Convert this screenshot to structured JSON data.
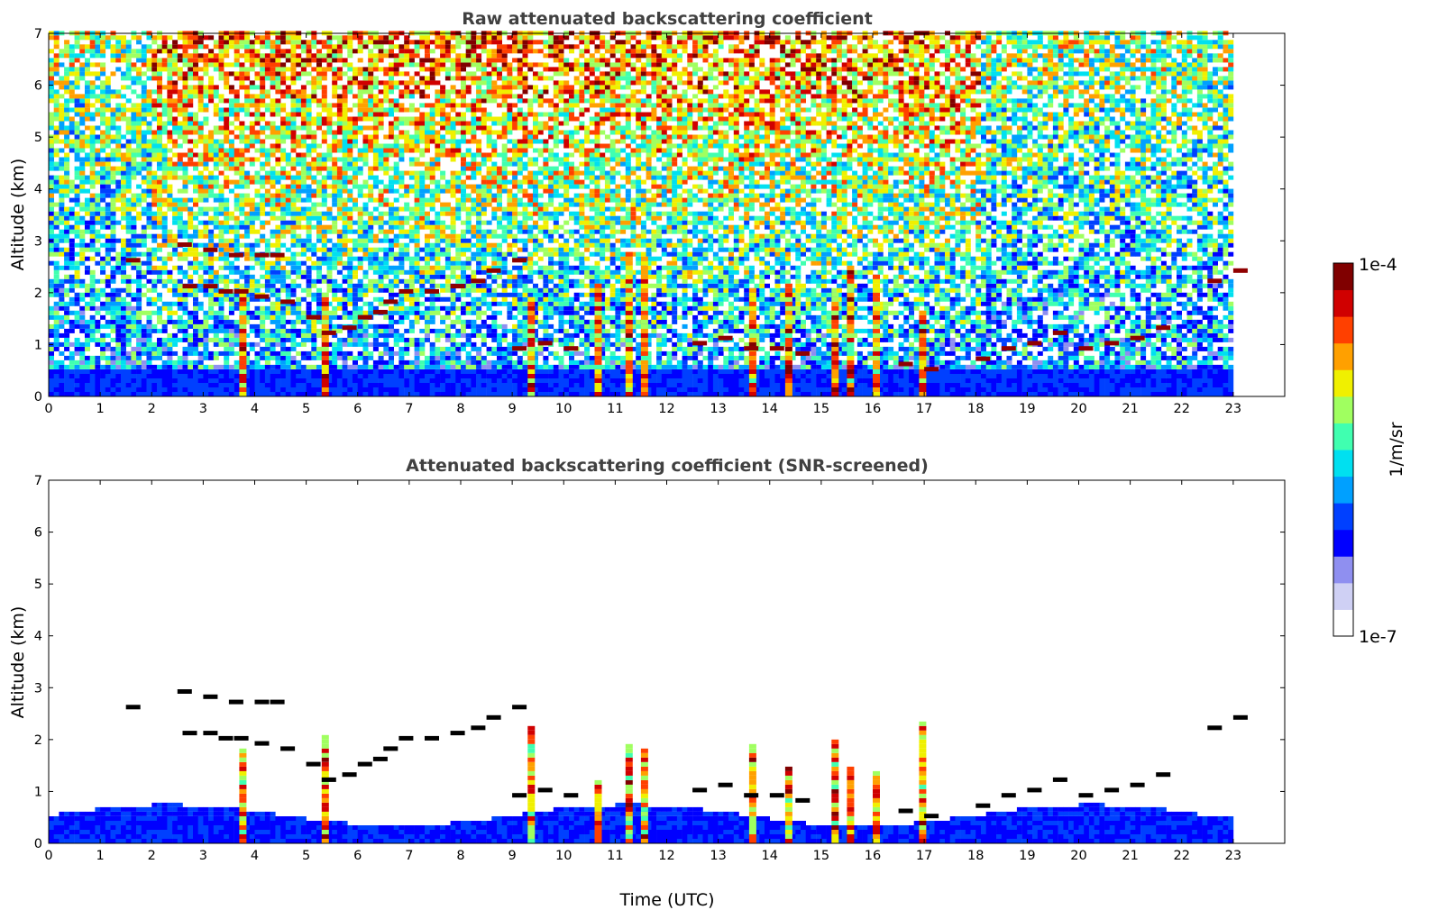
{
  "chart_data": [
    {
      "type": "heatmap",
      "title": "Raw attenuated backscattering coefficient",
      "ylabel": "Altitude (km)",
      "xlabel": "",
      "xlim": [
        0,
        24
      ],
      "ylim": [
        0,
        7
      ],
      "x_ticks": [
        "0",
        "1",
        "2",
        "3",
        "4",
        "5",
        "6",
        "7",
        "8",
        "9",
        "10",
        "11",
        "12",
        "13",
        "14",
        "15",
        "16",
        "17",
        "18",
        "19",
        "20",
        "21",
        "22",
        "23"
      ],
      "y_ticks": [
        "0",
        "1",
        "2",
        "3",
        "4",
        "5",
        "6",
        "7"
      ],
      "data_end_time": 23,
      "grid": false,
      "features": {
        "cloud_base_km": [
          [
            1.5,
            2.6
          ],
          [
            2.5,
            2.9
          ],
          [
            3.0,
            2.8
          ],
          [
            3.5,
            2.7
          ],
          [
            4.0,
            2.7
          ],
          [
            4.3,
            2.7
          ],
          [
            2.6,
            2.1
          ],
          [
            3.0,
            2.1
          ],
          [
            3.3,
            2.0
          ],
          [
            3.6,
            2.0
          ],
          [
            4.0,
            1.9
          ],
          [
            4.5,
            1.8
          ],
          [
            5.0,
            1.5
          ],
          [
            5.3,
            1.2
          ],
          [
            5.7,
            1.3
          ],
          [
            6.0,
            1.5
          ],
          [
            6.3,
            1.6
          ],
          [
            6.5,
            1.8
          ],
          [
            6.8,
            2.0
          ],
          [
            7.3,
            2.0
          ],
          [
            7.8,
            2.1
          ],
          [
            8.2,
            2.2
          ],
          [
            8.5,
            2.4
          ],
          [
            9.0,
            2.6
          ],
          [
            9.0,
            0.9
          ],
          [
            9.5,
            1.0
          ],
          [
            10.0,
            0.9
          ],
          [
            12.5,
            1.0
          ],
          [
            13.0,
            1.1
          ],
          [
            13.5,
            0.9
          ],
          [
            14.0,
            0.9
          ],
          [
            14.5,
            0.8
          ],
          [
            16.5,
            0.6
          ],
          [
            17.0,
            0.5
          ],
          [
            18.0,
            0.7
          ],
          [
            18.5,
            0.9
          ],
          [
            19.0,
            1.0
          ],
          [
            19.5,
            1.2
          ],
          [
            20.0,
            0.9
          ],
          [
            20.5,
            1.0
          ],
          [
            21.0,
            1.1
          ],
          [
            21.5,
            1.3
          ],
          [
            22.5,
            2.2
          ],
          [
            23.0,
            2.4
          ]
        ],
        "precipitation_hours": [
          3.7,
          5.3,
          9.3,
          10.6,
          11.2,
          11.5,
          13.6,
          14.3,
          15.2,
          15.5,
          16.0,
          16.9
        ]
      }
    },
    {
      "type": "heatmap",
      "title": "Attenuated backscattering coefficient (SNR-screened)",
      "ylabel": "Altitude (km)",
      "xlabel": "Time (UTC)",
      "xlim": [
        0,
        24
      ],
      "ylim": [
        0,
        7
      ],
      "x_ticks": [
        "0",
        "1",
        "2",
        "3",
        "4",
        "5",
        "6",
        "7",
        "8",
        "9",
        "10",
        "11",
        "12",
        "13",
        "14",
        "15",
        "16",
        "17",
        "18",
        "19",
        "20",
        "21",
        "22",
        "23"
      ],
      "y_ticks": [
        "0",
        "1",
        "2",
        "3",
        "4",
        "5",
        "6",
        "7"
      ],
      "data_end_time": 23,
      "grid": false
    }
  ],
  "colorbar": {
    "label": "1/m/sr",
    "max_label": "1e-4",
    "min_label": "1e-7",
    "scale": "log",
    "colors": [
      "#ffffff",
      "#cfd0f4",
      "#8f8ff0",
      "#0000ff",
      "#0040ff",
      "#00a0ff",
      "#00e0f0",
      "#40ffb0",
      "#a0ff60",
      "#f0f000",
      "#ffa000",
      "#ff4000",
      "#d00000",
      "#800000"
    ]
  }
}
